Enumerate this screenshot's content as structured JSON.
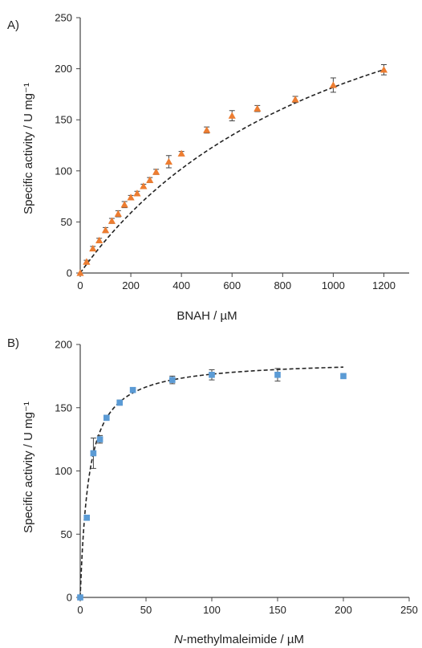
{
  "chart_data": [
    {
      "type": "scatter",
      "panel_label": "A)",
      "title": "",
      "xlabel": "BNAH / µM",
      "ylabel": "Specific activity / U mg⁻¹",
      "xlim": [
        0,
        1300
      ],
      "ylim": [
        0,
        250
      ],
      "xticks": [
        0,
        200,
        400,
        600,
        800,
        1000,
        1200
      ],
      "yticks": [
        0,
        50,
        100,
        150,
        200,
        250
      ],
      "grid": false,
      "marker": "triangle",
      "marker_color": "#ED7D31",
      "fit": {
        "model": "michaelis-menten",
        "vmax": 380,
        "km": 1090,
        "x_range": [
          0,
          1200
        ],
        "style": "dashed"
      },
      "series": [
        {
          "x": [
            0,
            25,
            50,
            75,
            100,
            125,
            150,
            175,
            200,
            225,
            250,
            275,
            300,
            350,
            400,
            500,
            600,
            700,
            850,
            1000,
            1200
          ],
          "y": [
            0,
            11,
            24,
            32,
            42,
            51,
            58,
            67,
            74,
            78,
            85,
            91,
            99,
            109,
            117,
            140,
            154,
            161,
            170,
            184,
            199
          ],
          "err": [
            0,
            1.5,
            2,
            2,
            2.5,
            2.5,
            3,
            3,
            2,
            2,
            2,
            2.5,
            2.5,
            6,
            2,
            3,
            5,
            3,
            3,
            7,
            5
          ]
        }
      ]
    },
    {
      "type": "scatter",
      "panel_label": "B)",
      "title": "",
      "xlabel_italic": "N",
      "xlabel_rest": "-methylmaleimide / µM",
      "ylabel": "Specific activity / U mg⁻¹",
      "xlim": [
        0,
        250
      ],
      "ylim": [
        0,
        200
      ],
      "xticks": [
        0,
        50,
        100,
        150,
        200,
        250
      ],
      "yticks": [
        0,
        50,
        100,
        150,
        200
      ],
      "grid": false,
      "marker": "square",
      "marker_color": "#5B9BD5",
      "fit": {
        "model": "michaelis-menten",
        "vmax": 188,
        "km": 6.5,
        "x_range": [
          0,
          200
        ],
        "style": "dashed"
      },
      "series": [
        {
          "x": [
            0,
            5,
            10,
            15,
            20,
            30,
            40,
            70,
            100,
            150,
            200
          ],
          "y": [
            0,
            63,
            114,
            125,
            142,
            154,
            164,
            172,
            176,
            176,
            175
          ],
          "err": [
            0,
            2,
            12,
            3,
            2,
            2,
            2,
            3,
            4,
            5,
            2
          ]
        }
      ]
    }
  ]
}
